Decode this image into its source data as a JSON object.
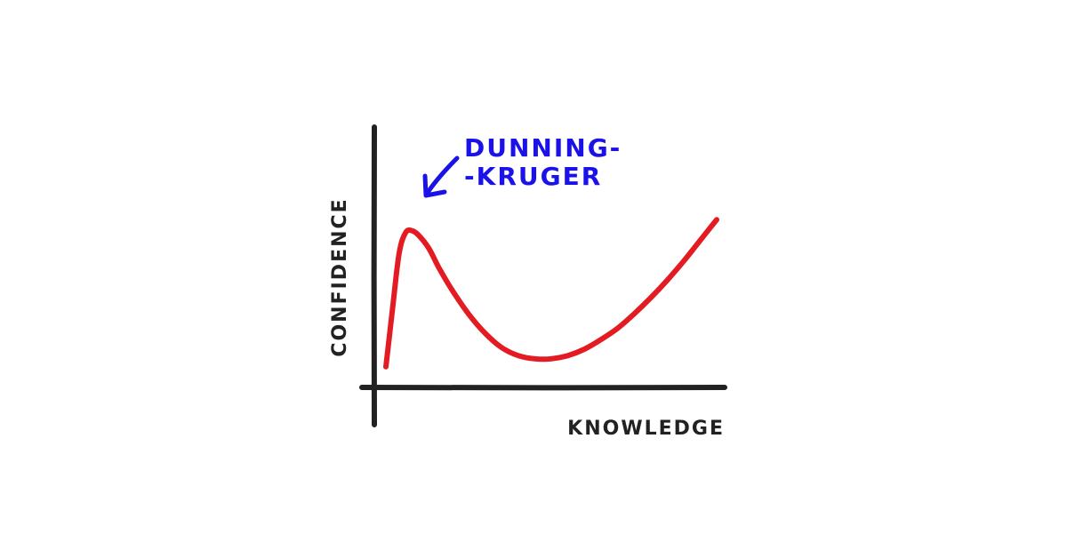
{
  "chart_data": {
    "type": "line",
    "title": "",
    "xlabel": "KNOWLEDGE",
    "ylabel": "CONFIDENCE",
    "grid": false,
    "series": [
      {
        "color": "#e31b23",
        "x": [
          0,
          2,
          4,
          6,
          8,
          10,
          13,
          16,
          20,
          25,
          30,
          35,
          40,
          45,
          50,
          55,
          60,
          65,
          70,
          75,
          80,
          85,
          90,
          95,
          100
        ],
        "y": [
          4,
          40,
          75,
          88,
          89,
          86,
          78,
          66,
          52,
          37,
          25,
          16,
          11,
          9,
          9,
          11,
          15,
          21,
          28,
          37,
          47,
          58,
          70,
          83,
          96
        ]
      }
    ],
    "annotations": [
      {
        "lines": [
          "DUNNING-",
          "-KRUGER"
        ],
        "points_to": [
          8,
          89
        ],
        "color": "#1a12e8"
      }
    ],
    "axis_color": "#222222"
  }
}
